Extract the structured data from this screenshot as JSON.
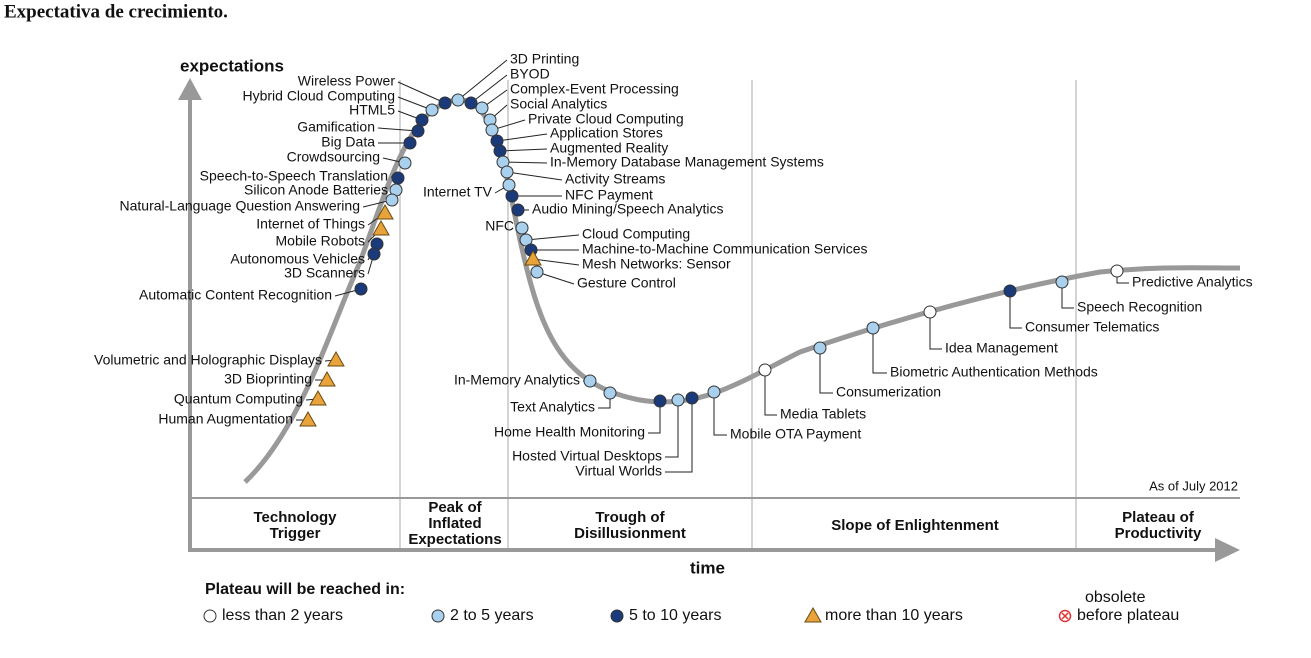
{
  "title": "Expectativa de crecimiento.",
  "axes": {
    "y": "expectations",
    "x": "time"
  },
  "note": "As of July 2012",
  "phases": [
    [
      "Technology",
      "Trigger"
    ],
    [
      "Peak of",
      "Inflated",
      "Expectations"
    ],
    [
      "Trough of",
      "Disillusionment"
    ],
    [
      "Slope of Enlightenment"
    ],
    [
      "Plateau of",
      "Productivity"
    ]
  ],
  "technologies": [
    "Wireless Power",
    "Hybrid Cloud Computing",
    "HTML5",
    "Gamification",
    "Big Data",
    "Crowdsourcing",
    "Speech-to-Speech Translation",
    "Silicon Anode Batteries",
    "Natural-Language Question Answering",
    "Internet of Things",
    "Mobile Robots",
    "Autonomous Vehicles",
    "3D Scanners",
    "Automatic Content Recognition",
    "Volumetric and Holographic Displays",
    "3D Bioprinting",
    "Quantum Computing",
    "Human Augmentation",
    "3D Printing",
    "BYOD",
    "Complex-Event Processing",
    "Social Analytics",
    "Private Cloud Computing",
    "Application Stores",
    "Augmented Reality",
    "In-Memory Database Management Systems",
    "Activity Streams",
    "NFC Payment",
    "Internet TV",
    "Audio Mining/Speech Analytics",
    "NFC",
    "Cloud Computing",
    "Machine-to-Machine Communication Services",
    "Mesh Networks: Sensor",
    "Gesture Control",
    "In-Memory Analytics",
    "Text Analytics",
    "Home Health Monitoring",
    "Hosted Virtual Desktops",
    "Virtual Worlds",
    "Mobile OTA Payment",
    "Media Tablets",
    "Consumerization",
    "Biometric Authentication Methods",
    "Idea Management",
    "Consumer Telematics",
    "Speech Recognition",
    "Predictive Analytics"
  ],
  "legend": {
    "title": "Plateau will be reached in:",
    "items": [
      [
        "less than 2 years"
      ],
      [
        "2 to 5 years"
      ],
      [
        "5 to 10 years"
      ],
      [
        "more than 10 years"
      ],
      [
        "obsolete",
        "before plateau"
      ]
    ]
  }
}
